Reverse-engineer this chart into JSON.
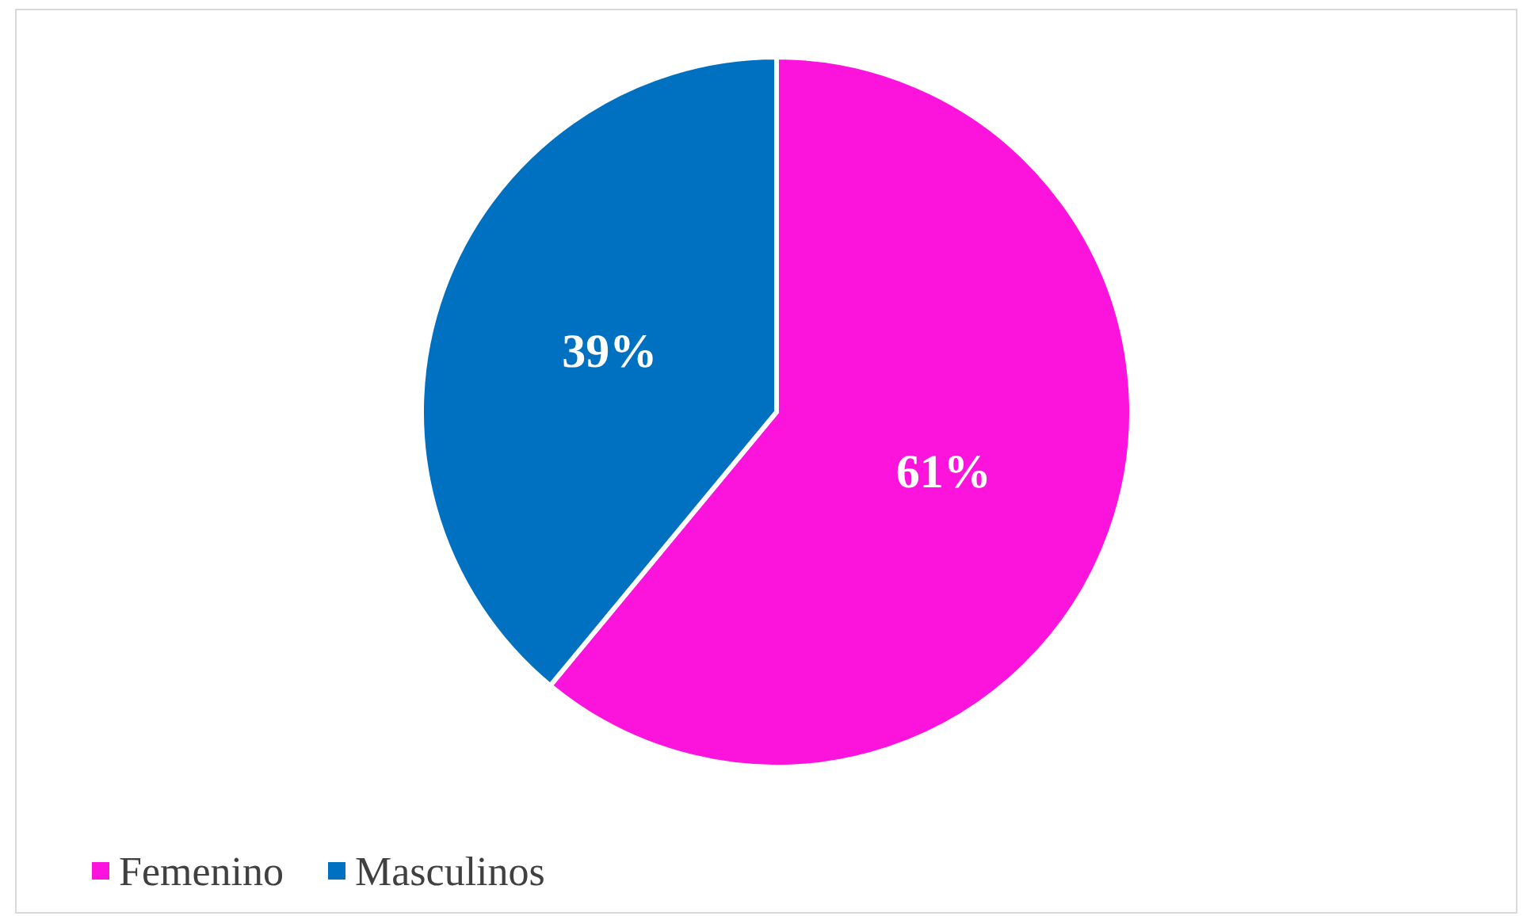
{
  "chart_data": {
    "type": "pie",
    "categories": [
      "Femenino",
      "Masculinos"
    ],
    "values": [
      61,
      39
    ],
    "colors": [
      "#fc13dc",
      "#0070c0"
    ],
    "value_labels": [
      "61%",
      "39%"
    ],
    "legend": "bottom left"
  }
}
